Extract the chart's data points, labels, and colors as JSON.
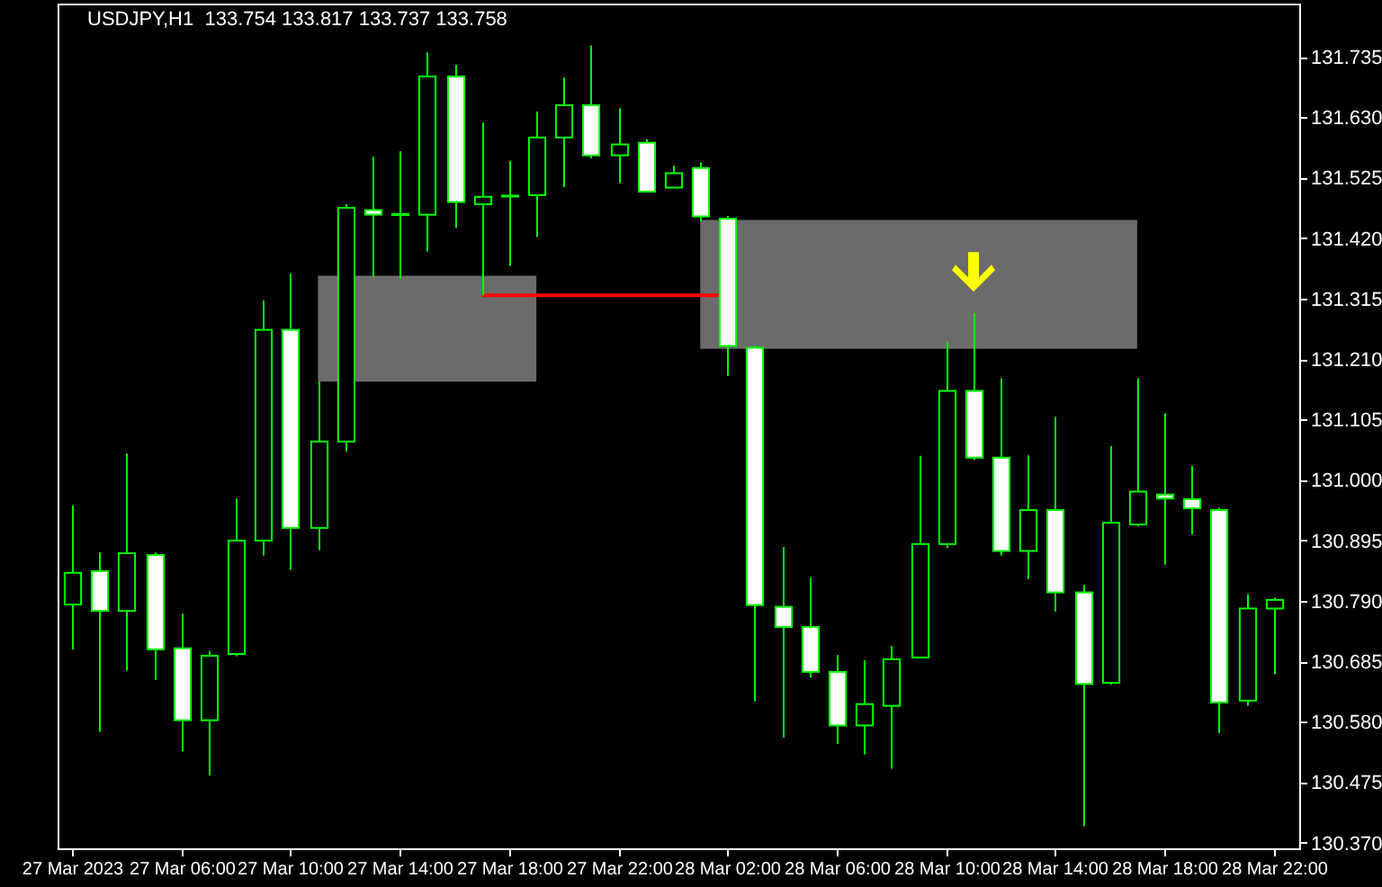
{
  "chart_data": {
    "type": "candlestick",
    "title": "USDJPY,H1  133.754 133.817 133.737 133.758",
    "x": [
      "2023-03-27T02:00",
      "2023-03-27T03:00",
      "2023-03-27T04:00",
      "2023-03-27T05:00",
      "2023-03-27T06:00",
      "2023-03-27T07:00",
      "2023-03-27T08:00",
      "2023-03-27T09:00",
      "2023-03-27T10:00",
      "2023-03-27T11:00",
      "2023-03-27T12:00",
      "2023-03-27T13:00",
      "2023-03-27T14:00",
      "2023-03-27T15:00",
      "2023-03-27T16:00",
      "2023-03-27T17:00",
      "2023-03-27T18:00",
      "2023-03-27T19:00",
      "2023-03-27T20:00",
      "2023-03-27T21:00",
      "2023-03-27T22:00",
      "2023-03-27T23:00",
      "2023-03-28T00:00",
      "2023-03-28T01:00",
      "2023-03-28T02:00",
      "2023-03-28T03:00",
      "2023-03-28T04:00",
      "2023-03-28T05:00",
      "2023-03-28T06:00",
      "2023-03-28T07:00",
      "2023-03-28T08:00",
      "2023-03-28T09:00",
      "2023-03-28T10:00",
      "2023-03-28T11:00",
      "2023-03-28T12:00",
      "2023-03-28T13:00",
      "2023-03-28T14:00",
      "2023-03-28T15:00",
      "2023-03-28T16:00",
      "2023-03-28T17:00",
      "2023-03-28T18:00",
      "2023-03-28T19:00",
      "2023-03-28T20:00",
      "2023-03-28T21:00",
      "2023-03-28T22:00"
    ],
    "ohlc": [
      [
        130.784,
        130.956,
        130.706,
        130.839
      ],
      [
        130.842,
        130.874,
        130.563,
        130.773
      ],
      [
        130.773,
        131.046,
        130.669,
        130.873
      ],
      [
        130.87,
        130.874,
        130.653,
        130.706
      ],
      [
        130.708,
        130.768,
        130.529,
        130.583
      ],
      [
        130.583,
        130.703,
        130.487,
        130.695
      ],
      [
        130.698,
        130.968,
        130.694,
        130.895
      ],
      [
        130.895,
        131.312,
        130.869,
        131.261
      ],
      [
        131.261,
        131.359,
        130.844,
        130.917
      ],
      [
        130.917,
        131.171,
        130.878,
        131.067
      ],
      [
        131.067,
        131.479,
        131.05,
        131.473
      ],
      [
        131.469,
        131.561,
        131.353,
        131.461
      ],
      [
        131.462,
        131.571,
        131.35,
        131.462
      ],
      [
        131.461,
        131.743,
        131.397,
        131.701
      ],
      [
        131.701,
        131.721,
        131.438,
        131.483
      ],
      [
        131.479,
        131.621,
        131.321,
        131.492
      ],
      [
        131.494,
        131.554,
        131.372,
        131.494
      ],
      [
        131.495,
        131.64,
        131.422,
        131.595
      ],
      [
        131.595,
        131.699,
        131.509,
        131.651
      ],
      [
        131.651,
        131.755,
        131.559,
        131.564
      ],
      [
        131.564,
        131.646,
        131.516,
        131.583
      ],
      [
        131.586,
        131.592,
        131.501,
        131.501
      ],
      [
        131.508,
        131.546,
        131.508,
        131.533
      ],
      [
        131.542,
        131.552,
        131.45,
        131.458
      ],
      [
        131.454,
        131.459,
        131.181,
        131.233
      ],
      [
        131.23,
        131.233,
        130.616,
        130.783
      ],
      [
        130.78,
        130.884,
        130.553,
        130.745
      ],
      [
        130.745,
        130.831,
        130.657,
        130.667
      ],
      [
        130.667,
        130.696,
        130.542,
        130.574
      ],
      [
        130.574,
        130.687,
        130.524,
        130.611
      ],
      [
        130.608,
        130.712,
        130.499,
        130.689
      ],
      [
        130.692,
        131.042,
        130.692,
        130.889
      ],
      [
        130.889,
        131.24,
        130.882,
        131.155
      ],
      [
        131.155,
        131.29,
        131.035,
        131.039
      ],
      [
        131.039,
        131.177,
        130.869,
        130.877
      ],
      [
        130.877,
        131.043,
        130.828,
        130.948
      ],
      [
        130.948,
        131.11,
        130.772,
        130.805
      ],
      [
        130.805,
        130.818,
        130.399,
        130.646
      ],
      [
        130.648,
        131.059,
        130.645,
        130.926
      ],
      [
        130.923,
        131.177,
        130.92,
        130.98
      ],
      [
        130.975,
        131.116,
        130.853,
        130.968
      ],
      [
        130.967,
        131.025,
        130.906,
        130.951
      ],
      [
        130.948,
        130.952,
        130.561,
        130.614
      ],
      [
        130.617,
        130.802,
        130.608,
        130.777
      ],
      [
        130.777,
        130.796,
        130.663,
        130.792
      ]
    ],
    "color": "#00ff00",
    "colors": [
      "#000000",
      "#ffffff",
      "#000000",
      "#ffffff",
      "#ffffff",
      "#000000",
      "#000000",
      "#000000",
      "#ffffff",
      "#000000",
      "#000000",
      "#ffffff",
      "#000000",
      "#000000",
      "#ffffff",
      "#000000",
      "#000000",
      "#000000",
      "#000000",
      "#ffffff",
      "#000000",
      "#ffffff",
      "#000000",
      "#ffffff",
      "#ffffff",
      "#ffffff",
      "#ffffff",
      "#ffffff",
      "#ffffff",
      "#000000",
      "#000000",
      "#000000",
      "#000000",
      "#ffffff",
      "#ffffff",
      "#000000",
      "#ffffff",
      "#ffffff",
      "#000000",
      "#000000",
      "#ffffff",
      "#ffffff",
      "#ffffff",
      "#000000",
      "#000000"
    ],
    "series": [
      {
        "type": "line",
        "color": "#6b6b6b",
        "x": [
          "2023-03-27T11:00",
          "2023-03-27T19:00"
        ],
        "values": [
          null,
          null
        ],
        "lower": [
          131.171,
          131.171
        ],
        "upper": [
          131.355,
          131.355
        ]
      },
      {
        "type": "line",
        "color": "#6b6b6b",
        "x": [
          "2023-03-28T01:00",
          "2023-03-28T17:00"
        ],
        "values": [
          null,
          null
        ],
        "lower": [
          131.228,
          131.228
        ],
        "upper": [
          131.452,
          131.452
        ]
      },
      {
        "type": "line",
        "color": "#ff0000",
        "x": [
          "2023-03-27T17:00",
          "2023-03-28T01:40"
        ],
        "values": [
          131.321,
          131.321
        ]
      }
    ],
    "xlim": [
      "2023-03-27T01:30",
      "2023-03-28T22:58"
    ],
    "xticks": [
      {
        "value": "2023-03-27T02:00",
        "label": "27 Mar 2023"
      },
      {
        "value": "2023-03-27T06:00",
        "label": "27 Mar 06:00"
      },
      {
        "value": "2023-03-27T10:00",
        "label": "27 Mar 10:00"
      },
      {
        "value": "2023-03-27T14:00",
        "label": "27 Mar 14:00"
      },
      {
        "value": "2023-03-27T18:00",
        "label": "27 Mar 18:00"
      },
      {
        "value": "2023-03-27T22:00",
        "label": "27 Mar 22:00"
      },
      {
        "value": "2023-03-28T02:00",
        "label": "28 Mar 02:00"
      },
      {
        "value": "2023-03-28T06:00",
        "label": "28 Mar 06:00"
      },
      {
        "value": "2023-03-28T10:00",
        "label": "28 Mar 10:00"
      },
      {
        "value": "2023-03-28T14:00",
        "label": "28 Mar 14:00"
      },
      {
        "value": "2023-03-28T18:00",
        "label": "28 Mar 18:00"
      },
      {
        "value": "2023-03-28T22:00",
        "label": "28 Mar 22:00"
      }
    ],
    "ylim": [
      130.359,
      131.826
    ],
    "yticks": [
      131.735,
      {
        "value": 131.63,
        "label": "131.630"
      },
      131.525,
      {
        "value": 131.42,
        "label": "131.420"
      },
      131.315,
      {
        "value": 131.21,
        "label": "131.210"
      },
      131.105,
      {
        "value": 131.0,
        "label": "131.000"
      },
      130.895,
      {
        "value": 130.79,
        "label": "130.790"
      },
      130.685,
      {
        "value": 130.58,
        "label": "130.580"
      },
      130.475,
      {
        "value": 130.37,
        "label": "130.370"
      }
    ],
    "grid": false
  }
}
